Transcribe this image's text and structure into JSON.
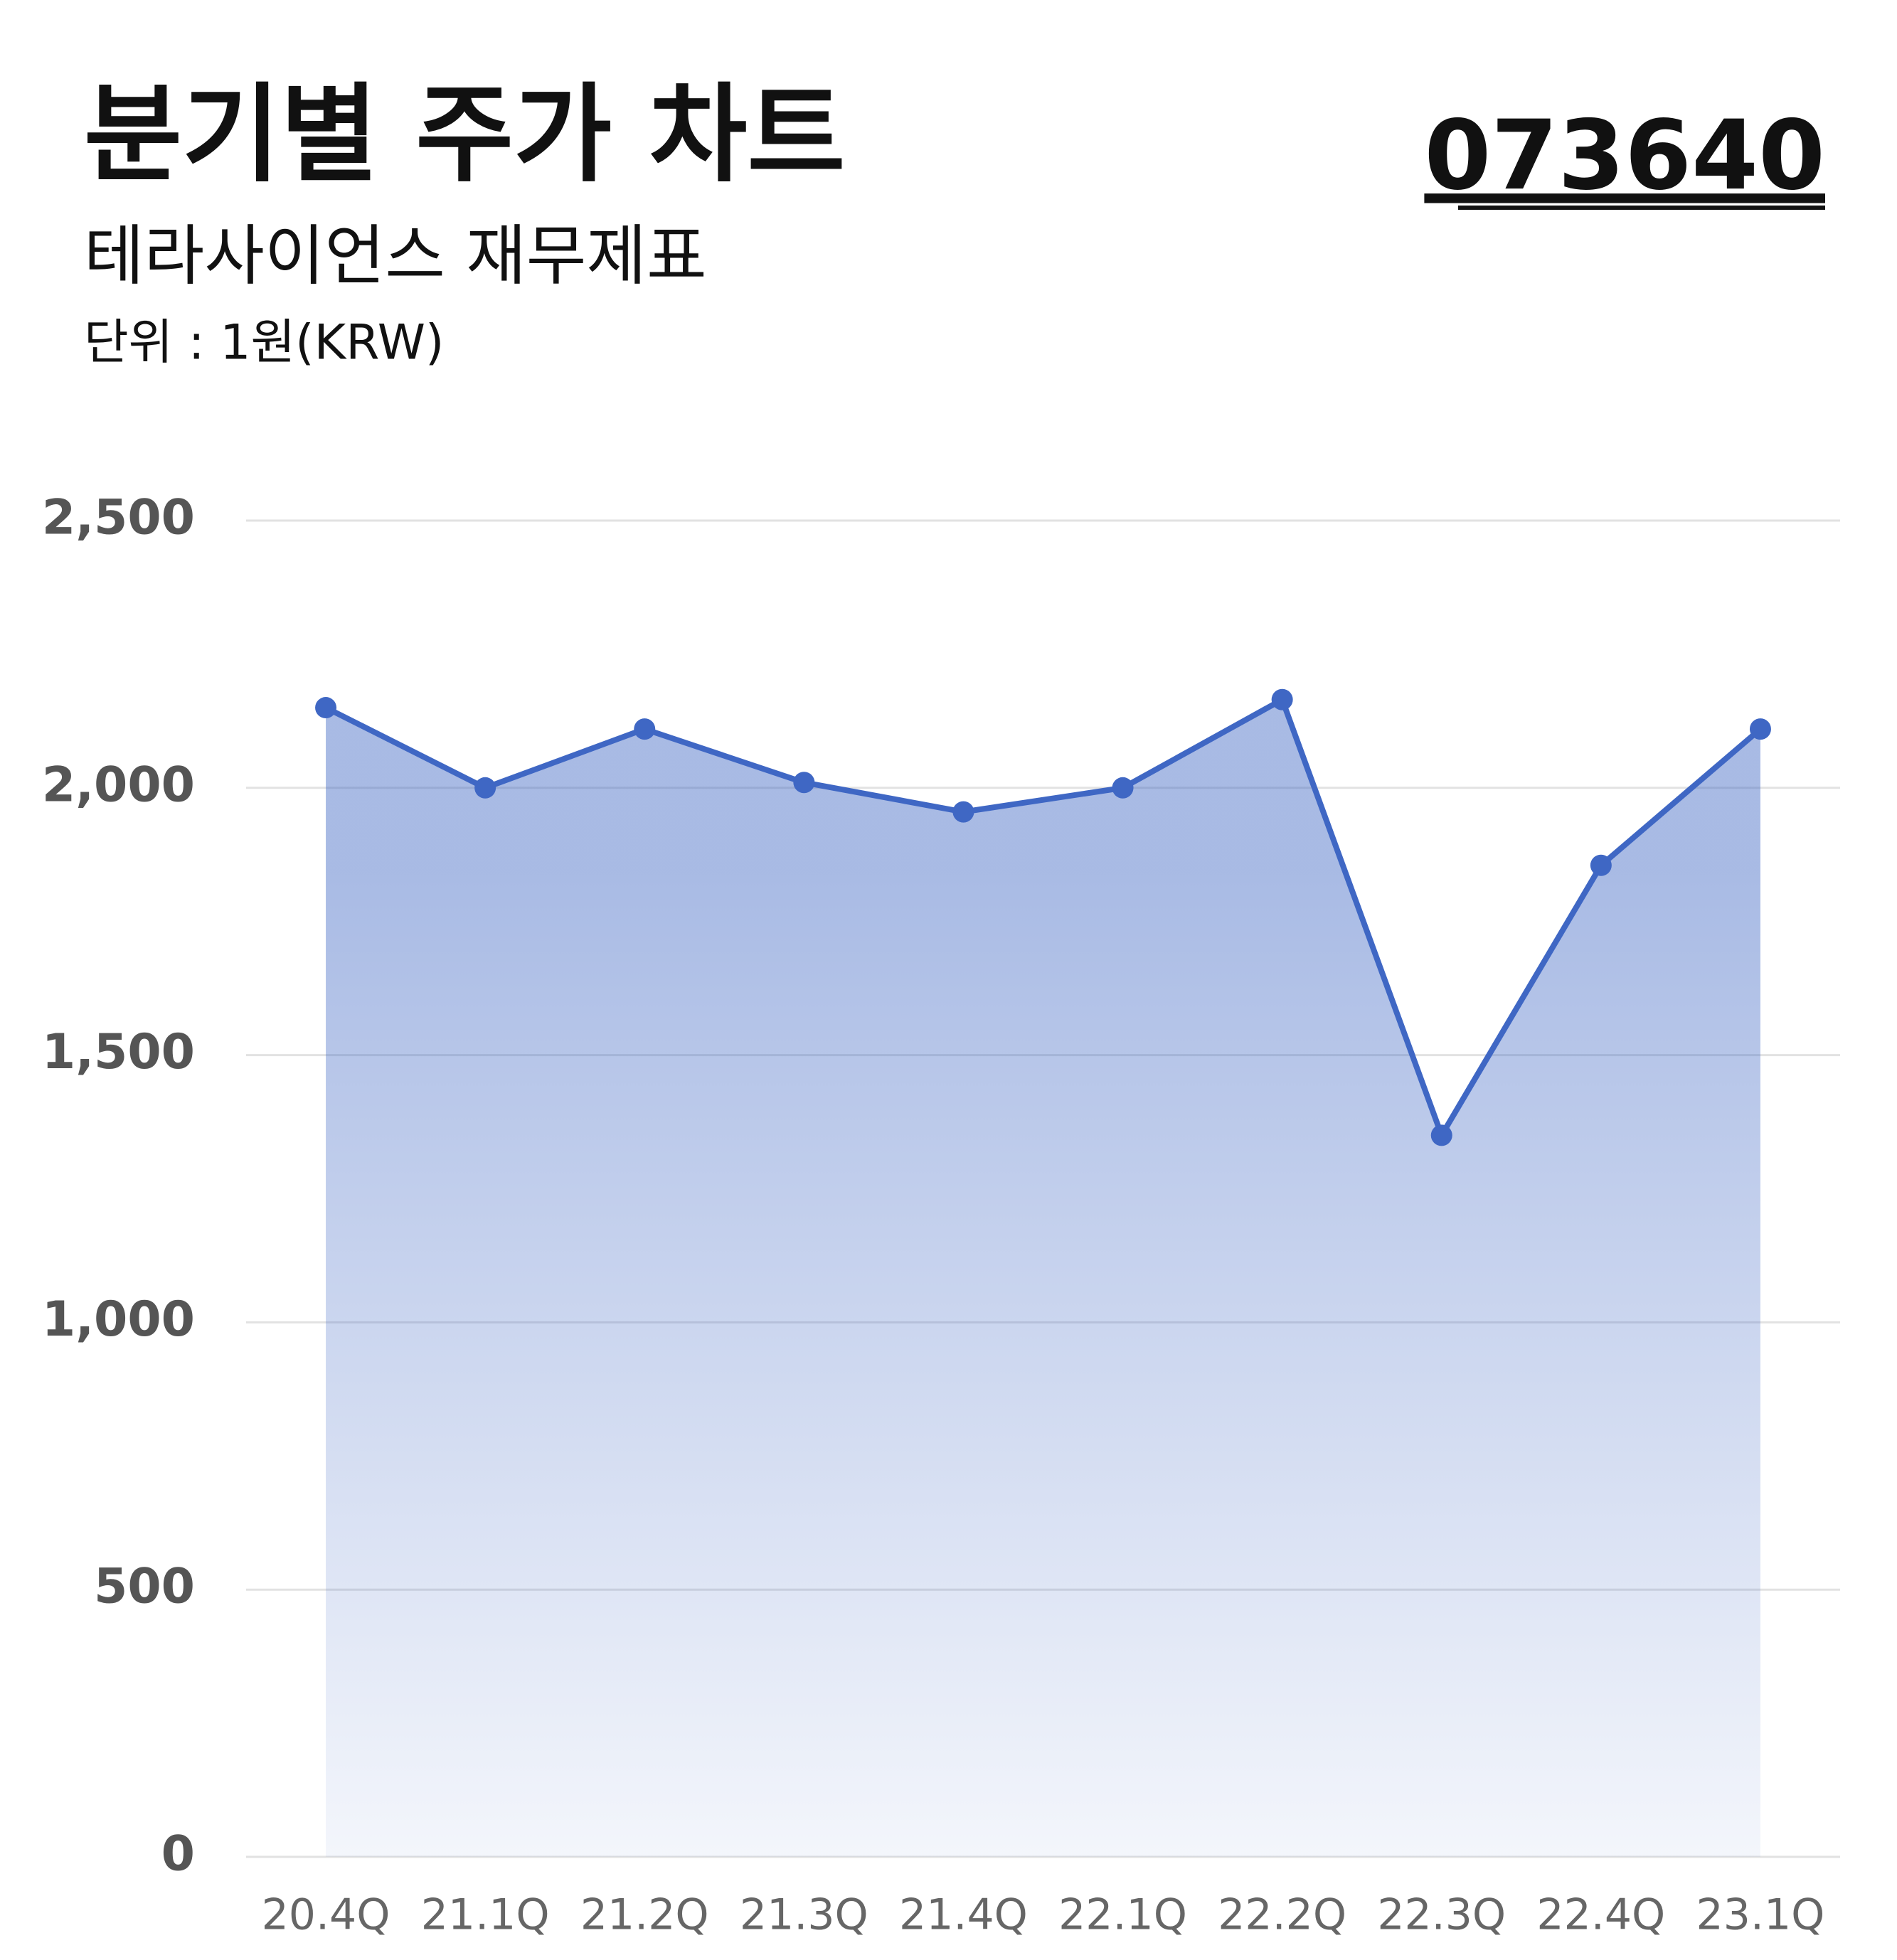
{
  "chart_data": {
    "type": "area",
    "title": "분기별 주가 차트",
    "subtitle": "테라사이언스 재무제표",
    "unit_label": "단위 : 1원(KRW)",
    "ticker": "073640",
    "categories": [
      "20.4Q",
      "21.1Q",
      "21.2Q",
      "21.3Q",
      "21.4Q",
      "22.1Q",
      "22.2Q",
      "22.3Q",
      "22.4Q",
      "23.1Q"
    ],
    "values": [
      2150,
      2000,
      2110,
      2010,
      1955,
      2000,
      2165,
      1350,
      1855,
      2110
    ],
    "color": "#3f67c4",
    "ylim": [
      0,
      2500
    ],
    "yticks": [
      0,
      500,
      {
        "value": 1000,
        "label": "1,000"
      },
      {
        "value": 1500,
        "label": "1,500"
      },
      {
        "value": 2000,
        "label": "2,000"
      },
      {
        "value": 2500,
        "label": "2,500"
      }
    ],
    "grid": true
  }
}
